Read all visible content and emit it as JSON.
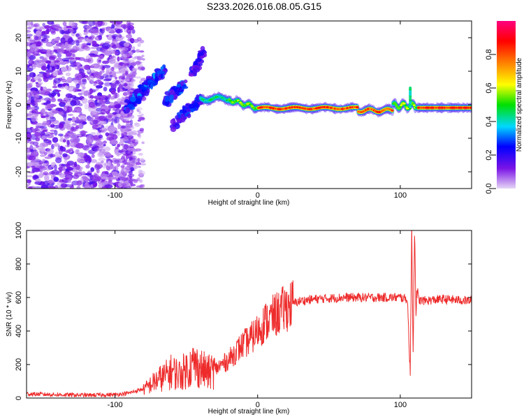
{
  "title": "S233.2026.016.08.05.G15",
  "chart_data": [
    {
      "type": "heatmap",
      "title": "S233.2026.016.08.05.G15",
      "xlabel": "Height of straight line (km)",
      "ylabel": "Frequency (Hz)",
      "xlim": [
        -162,
        150
      ],
      "ylim": [
        -25,
        25
      ],
      "xticks": [
        -100,
        0,
        100
      ],
      "xtick_labels": [
        "-100",
        "0",
        "100"
      ],
      "yticks": [
        -20,
        -10,
        0,
        10,
        20
      ],
      "ytick_labels": [
        "-20",
        "-10",
        "0",
        "10",
        "20"
      ],
      "colorbar": {
        "label": "Normalized spectral amplitude",
        "range": [
          0,
          1
        ],
        "ticks": [
          0.0,
          0.2,
          0.4,
          0.6,
          0.8
        ],
        "tick_labels": [
          "0.0",
          "0.2",
          "0.4",
          "0.6",
          "0.8"
        ],
        "colors": [
          "#e6d6f5",
          "#7a14e6",
          "#0000ff",
          "#00d8ff",
          "#00e000",
          "#ffff00",
          "#ff8000",
          "#ff0000",
          "#ff0080"
        ]
      },
      "description_points": [
        {
          "x": -150,
          "y": 0,
          "region": "noise",
          "amplitude": 0.15
        },
        {
          "x": -85,
          "y": 2,
          "amplitude": 0.3
        },
        {
          "x": -70,
          "y": 8,
          "amplitude": 0.35
        },
        {
          "x": -60,
          "y": 3,
          "amplitude": 0.3
        },
        {
          "x": -50,
          "y": -1,
          "amplitude": 0.25
        },
        {
          "x": -42,
          "y": 13,
          "amplitude": 0.2
        },
        {
          "x": -25,
          "y": 1.5,
          "amplitude": 0.5
        },
        {
          "x": 0,
          "y": -1.2,
          "amplitude": 0.7
        },
        {
          "x": 50,
          "y": -1,
          "amplitude": 0.9
        },
        {
          "x": 75,
          "y": -1.5,
          "amplitude": 0.85
        },
        {
          "x": 100,
          "y": 0,
          "amplitude": 0.6
        },
        {
          "x": 130,
          "y": -1,
          "amplitude": 0.9
        }
      ]
    },
    {
      "type": "line",
      "title": "",
      "xlabel": "Height of straight line (km)",
      "ylabel": "SNR (10 * v/v)",
      "xlim": [
        -162,
        150
      ],
      "ylim": [
        0,
        1000
      ],
      "xticks": [
        -100,
        0,
        100
      ],
      "xtick_labels": [
        "-100",
        "0",
        "100"
      ],
      "yticks": [
        0,
        200,
        400,
        600,
        800,
        1000
      ],
      "ytick_labels": [
        "0",
        "200",
        "400",
        "600",
        "800",
        "1000"
      ],
      "color": "#ee2b2b",
      "series": [
        {
          "name": "SNR",
          "x": [
            -162,
            -140,
            -120,
            -100,
            -90,
            -80,
            -75,
            -70,
            -65,
            -60,
            -55,
            -50,
            -45,
            -40,
            -35,
            -30,
            -25,
            -20,
            -15,
            -10,
            -5,
            0,
            5,
            10,
            15,
            20,
            25,
            30,
            40,
            60,
            80,
            100,
            105,
            107,
            108,
            109,
            110,
            111,
            112,
            115,
            130,
            150
          ],
          "y": [
            20,
            15,
            12,
            15,
            25,
            50,
            80,
            110,
            130,
            160,
            140,
            170,
            200,
            180,
            150,
            170,
            200,
            230,
            280,
            320,
            350,
            400,
            450,
            480,
            510,
            540,
            565,
            580,
            590,
            600,
            600,
            600,
            590,
            140,
            1000,
            300,
            990,
            560,
            590,
            580,
            590,
            580
          ]
        }
      ]
    }
  ]
}
